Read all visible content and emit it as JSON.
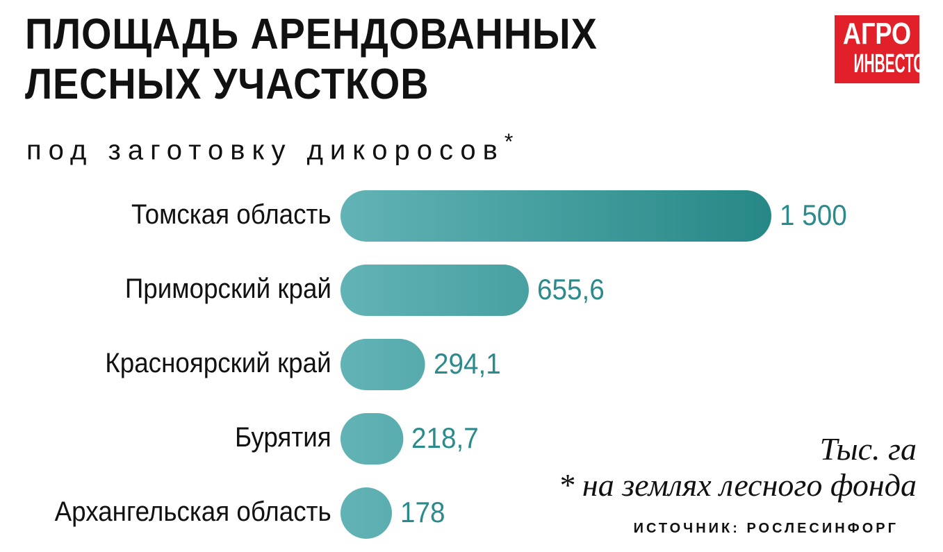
{
  "logo": {
    "line1": "АГРО",
    "line2": "ИНВЕСТОР",
    "color": "#e2202a"
  },
  "chart_data": {
    "type": "bar",
    "orientation": "horizontal",
    "title": "ПЛОЩАДЬ АРЕНДОВАННЫХ ЛЕСНЫХ УЧАСТКОВ",
    "subtitle": "под заготовку дикоросов",
    "subtitle_mark": "*",
    "categories": [
      "Томская область",
      "Приморский край",
      "Красноярский край",
      "Бурятия",
      "Архангельская область"
    ],
    "values": [
      1500,
      655.6,
      294.1,
      218.7,
      178
    ],
    "value_labels": [
      "1 500",
      "655,6",
      "294,1",
      "218,7",
      "178"
    ],
    "unit": "Тыс. га",
    "footnote": "* на землях лесного фонда",
    "source": "ИСТОЧНИК: РОСЛЕСИНФОРГ",
    "bar_color_start": "#62b3b6",
    "bar_color_end": "#268886",
    "value_color": "#2b8b8c",
    "xlim": [
      0,
      1500
    ]
  }
}
